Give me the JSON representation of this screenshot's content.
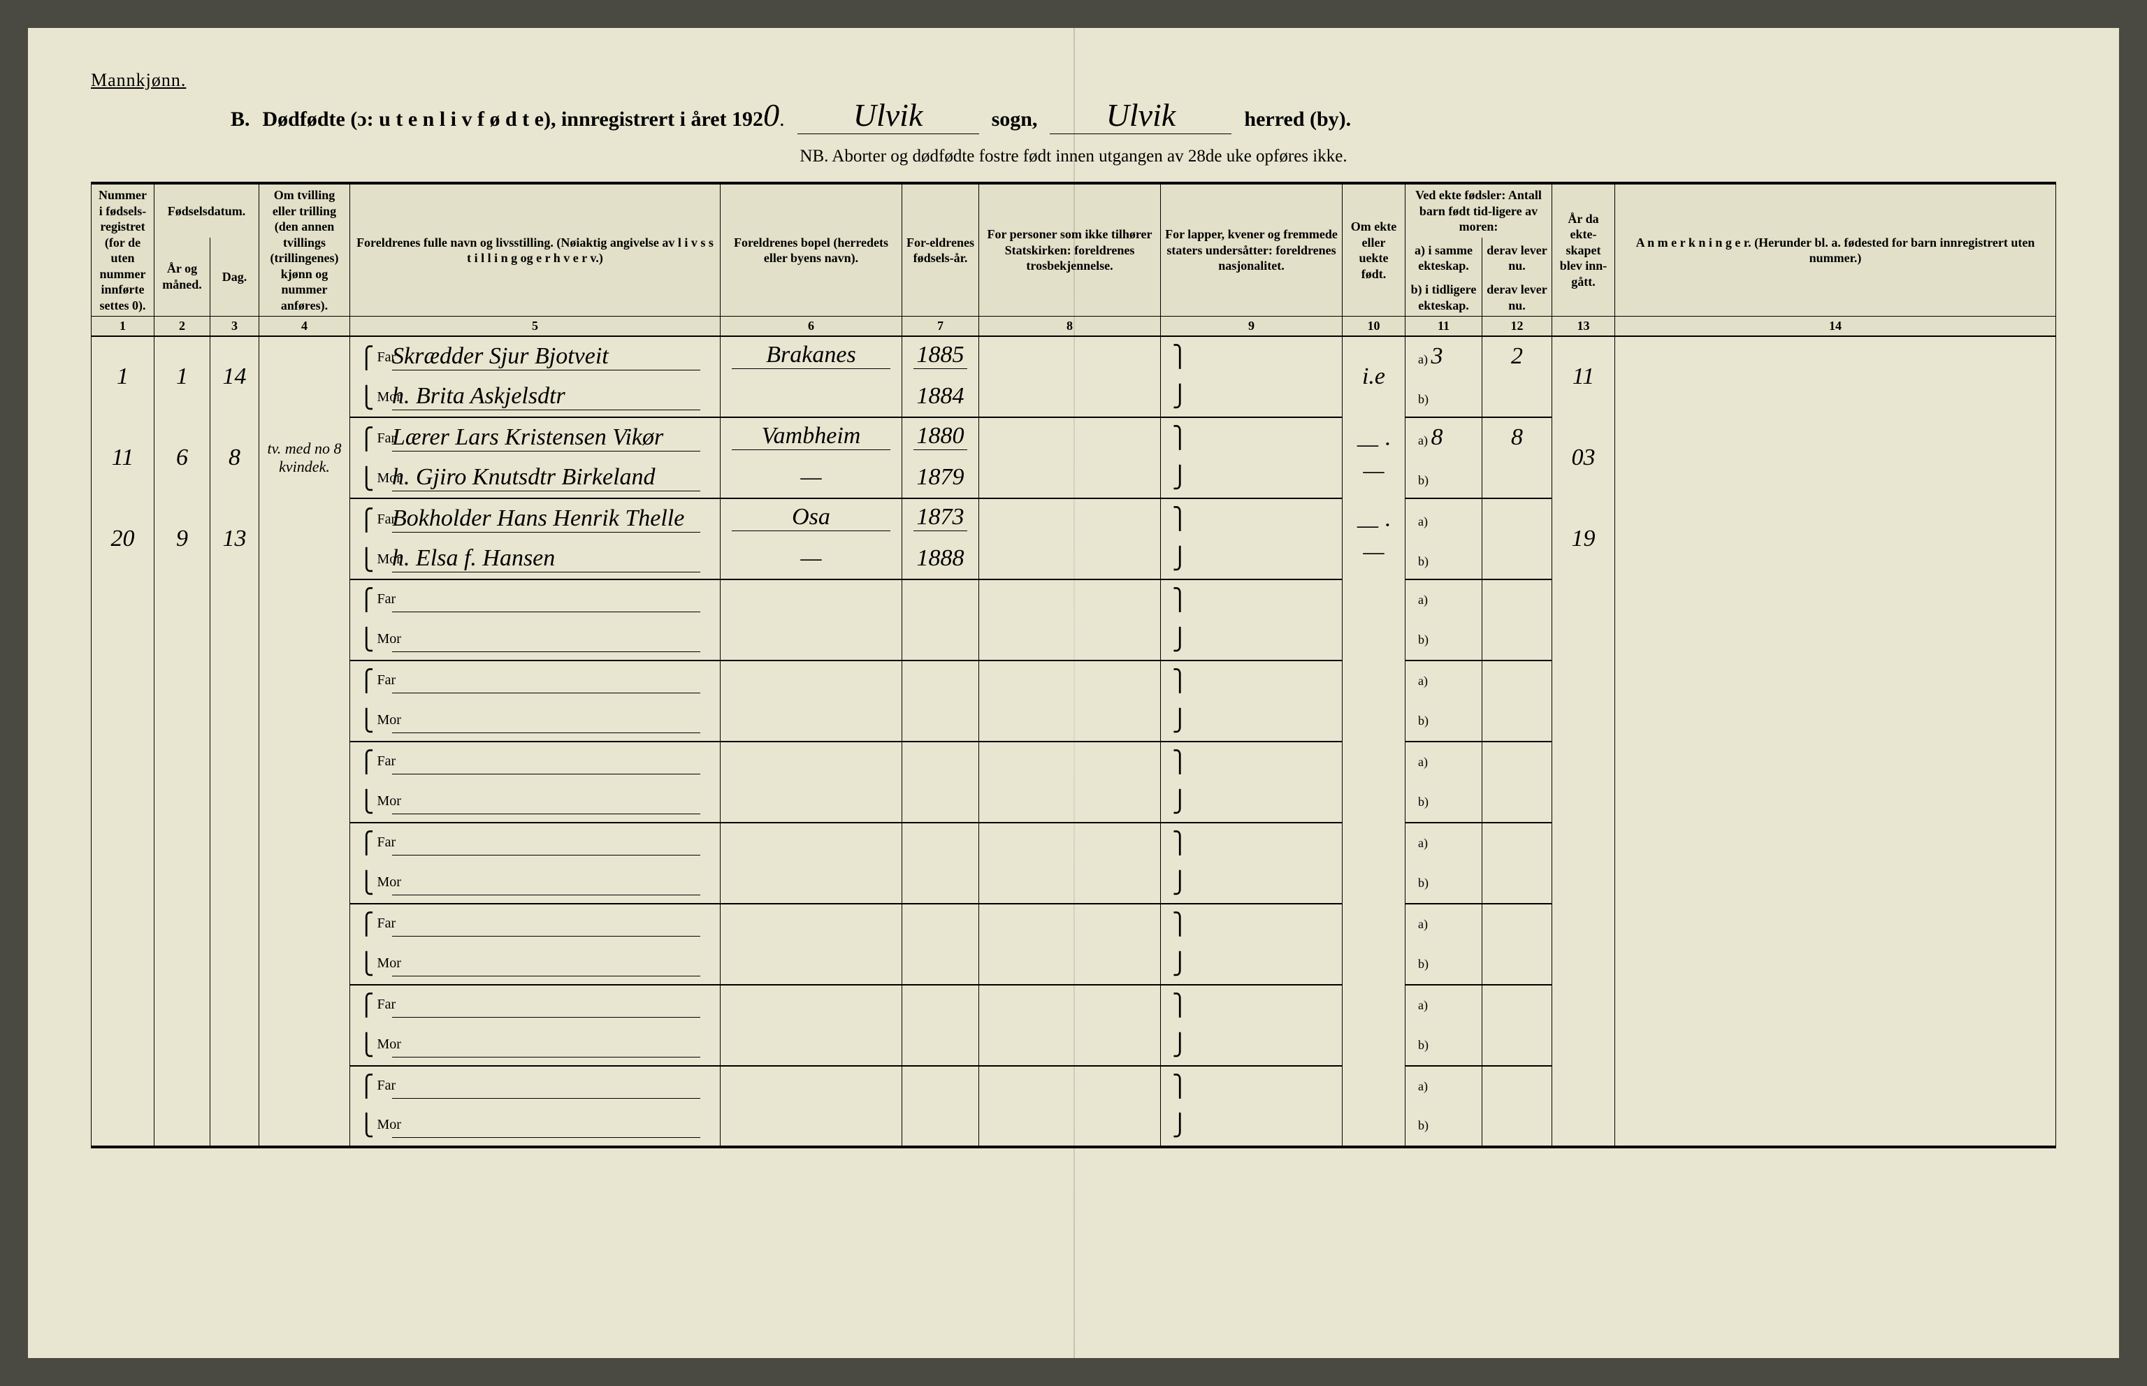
{
  "header": {
    "gender": "Mannkjønn.",
    "section_letter": "B.",
    "title_main": "Dødfødte (ɔ: u t e n  l i v  f ø d t e), innregistrert i året 192",
    "year_suffix": "0",
    "sogn_hw": "Ulvik",
    "sogn_label": "sogn,",
    "herred_hw": "Ulvik",
    "herred_label": "herred (by).",
    "nb": "NB.  Aborter og dødfødte fostre født innen utgangen av 28de uke opføres ikke."
  },
  "columns": {
    "c1": "Nummer i fødsels-registret (for de uten nummer innførte settes 0).",
    "c2_group": "Fødselsdatum.",
    "c2": "År og måned.",
    "c3": "Dag.",
    "c4": "Om tvilling eller trilling (den annen tvillings (trillingenes) kjønn og nummer anføres).",
    "c5": "Foreldrenes fulle navn og livsstilling. (Nøiaktig angivelse av l i v s s t i l l i n g og e r h v e r v.)",
    "c6": "Foreldrenes bopel (herredets eller byens navn).",
    "c7": "For-eldrenes fødsels-år.",
    "c8": "For personer som ikke tilhører Statskirken: foreldrenes trosbekjennelse.",
    "c9": "For lapper, kvener og fremmede staters undersåtter: foreldrenes nasjonalitet.",
    "c10": "Om ekte eller uekte født.",
    "c11_group": "Ved ekte fødsler: Antall barn født tid-ligere av moren:",
    "c11a": "a) i samme ekteskap.",
    "c11b": "b) i tidligere ekteskap.",
    "c12a": "derav lever nu.",
    "c12b": "derav lever nu.",
    "c13": "År da ekte-skapet blev inn-gått.",
    "c14": "A n m e r k n i n g e r. (Herunder bl. a. fødested for barn innregistrert uten nummer.)",
    "nums": [
      "1",
      "2",
      "3",
      "4",
      "5",
      "6",
      "7",
      "8",
      "9",
      "10",
      "11",
      "12",
      "13",
      "14"
    ]
  },
  "rows": [
    {
      "num": "1",
      "ym": "1",
      "day": "14",
      "twin": "",
      "far": "Skrædder Sjur Bjotveit",
      "mor": "h. Brita Askjelsdtr",
      "bopel_far": "Brakanes",
      "bopel_mor": "",
      "yr_far": "1885",
      "yr_mor": "1884",
      "col10": "i.e",
      "c11a": "3",
      "c12a": "2",
      "c11b": "",
      "c12b": "",
      "c13": "11"
    },
    {
      "num": "11",
      "ym": "6",
      "day": "8",
      "twin": "tv. med no 8 kvindek.",
      "far": "Lærer Lars Kristensen Vikør",
      "mor": "h. Gjiro Knutsdtr Birkeland",
      "bopel_far": "Vambheim",
      "bopel_mor": "—",
      "yr_far": "1880",
      "yr_mor": "1879",
      "col10": "— · —",
      "c11a": "8",
      "c12a": "8",
      "c11b": "",
      "c12b": "",
      "c13": "03"
    },
    {
      "num": "20",
      "ym": "9",
      "day": "13",
      "twin": "",
      "far": "Bokholder Hans Henrik Thelle",
      "mor": "h. Elsa f. Hansen",
      "bopel_far": "Osa",
      "bopel_mor": "—",
      "yr_far": "1873",
      "yr_mor": "1888",
      "col10": "— · —",
      "c11a": "",
      "c12a": "",
      "c11b": "",
      "c12b": "",
      "c13": "19"
    }
  ],
  "labels": {
    "far": "Far",
    "mor": "Mor",
    "a": "a)",
    "b": "b)"
  },
  "blank_rows": 7
}
